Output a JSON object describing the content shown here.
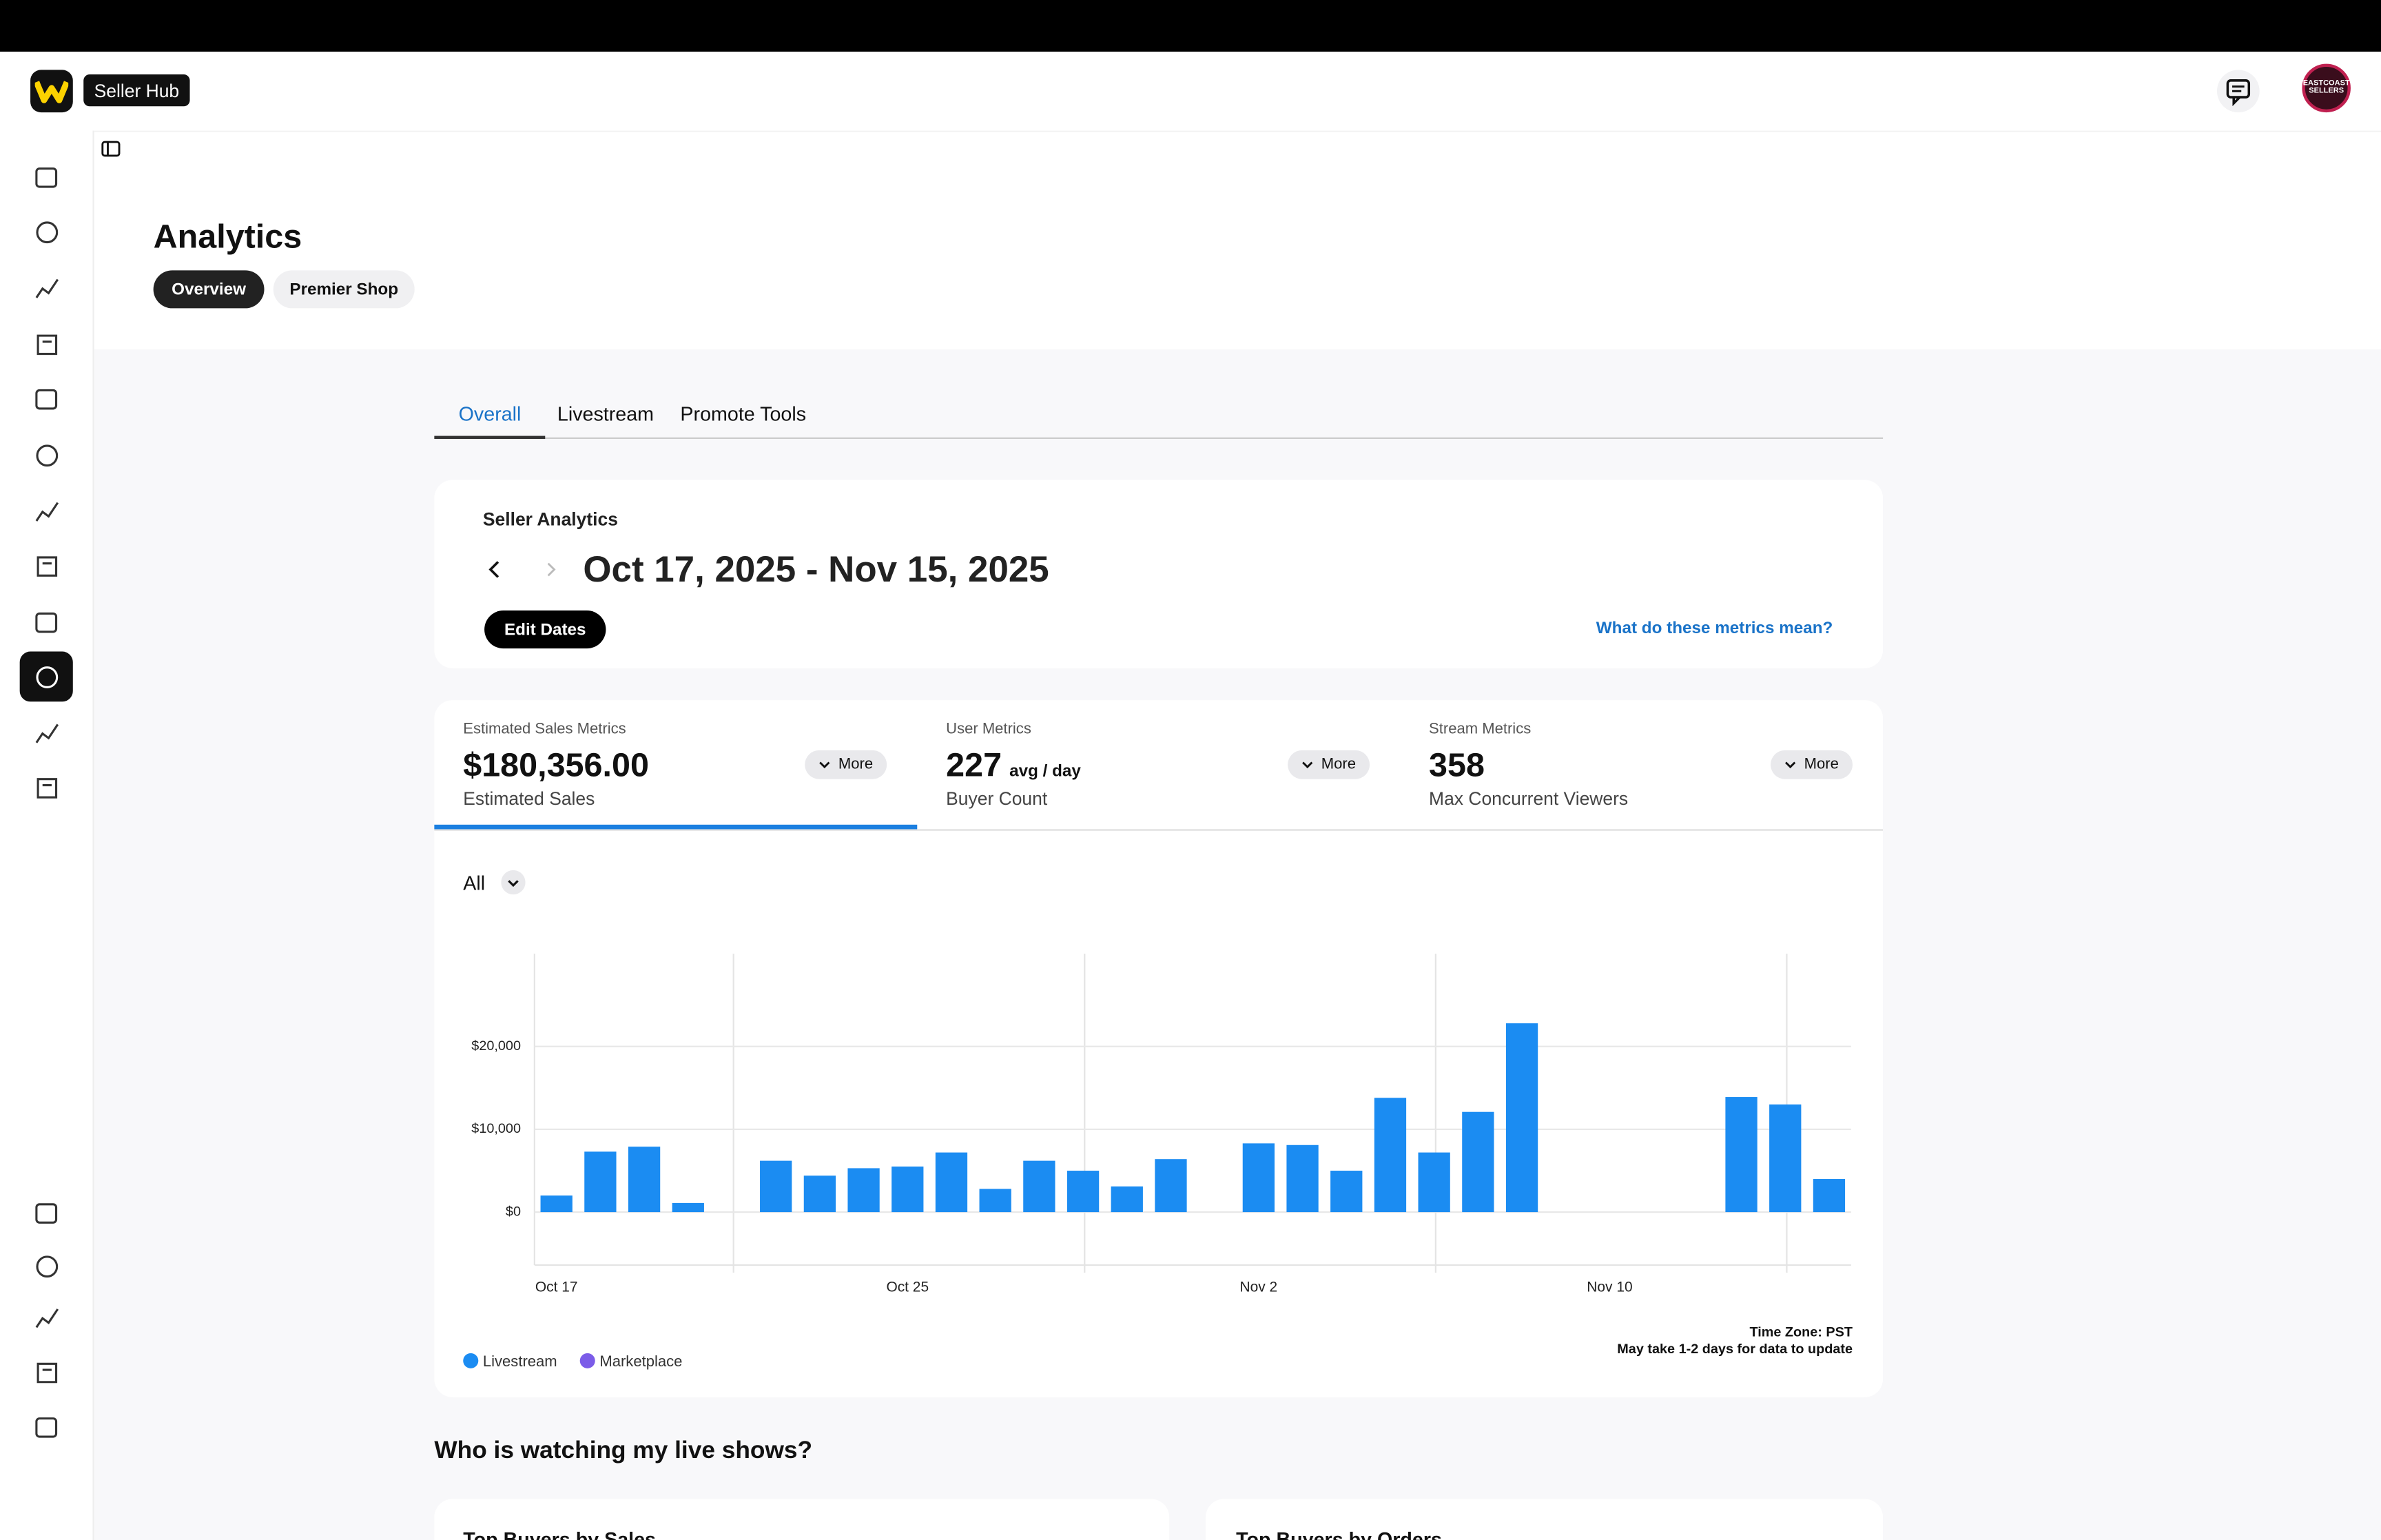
{
  "header": {
    "brand": "Seller Hub",
    "avatar": "EASTCOAST SELLERS"
  },
  "page": {
    "title": "Analytics",
    "pills": [
      "Overview",
      "Premier Shop"
    ]
  },
  "tabs": [
    "Overall",
    "Livestream",
    "Promote Tools"
  ],
  "range_card": {
    "label": "Seller Analytics",
    "dates": "Oct 17, 2025 - Nov 15, 2025",
    "button": "Edit Dates",
    "link": "What do these metrics mean?"
  },
  "metrics": [
    {
      "label": "Estimated Sales Metrics",
      "value": "$180,356.00",
      "unit": "",
      "caption": "Estimated Sales",
      "button": "More"
    },
    {
      "label": "User Metrics",
      "value": "227",
      "unit": "avg / day",
      "caption": "Buyer Count",
      "button": "More"
    },
    {
      "label": "Stream Metrics",
      "value": "358",
      "unit": "",
      "caption": "Max Concurrent Viewers",
      "button": "More"
    }
  ],
  "filter": "All",
  "notes": [
    "Time Zone: PST",
    "May take 1-2 days for data to update"
  ],
  "chart_data": {
    "type": "bar",
    "categories": [
      "Oct 17",
      null,
      null,
      null,
      null,
      null,
      null,
      null,
      "Oct 25",
      null,
      null,
      null,
      null,
      null,
      null,
      null,
      "Nov 2",
      null,
      null,
      null,
      null,
      null,
      null,
      null,
      "Nov 10",
      null,
      null,
      null,
      null,
      null
    ],
    "series": [
      {
        "name": "Livestream",
        "color": "#1b8cf2",
        "values": [
          2000,
          7300,
          7900,
          1100,
          0,
          6200,
          4400,
          5300,
          5500,
          7200,
          2800,
          6200,
          5000,
          3100,
          6400,
          0,
          8300,
          8100,
          5000,
          13800,
          7200,
          12100,
          22800,
          0,
          0,
          0,
          0,
          13900,
          13000,
          4000
        ]
      },
      {
        "name": "Marketplace",
        "color": "#7b5ce8",
        "values": [
          0,
          0,
          0,
          0,
          0,
          0,
          0,
          0,
          0,
          0,
          0,
          0,
          0,
          0,
          0,
          0,
          0,
          0,
          0,
          0,
          0,
          0,
          0,
          0,
          0,
          0,
          0,
          0,
          0,
          0
        ]
      }
    ],
    "ylim": [
      -6400,
      31200
    ],
    "yticks": [
      {
        "value": 0,
        "label": "$0"
      },
      {
        "value": 10000,
        "label": "$10,000"
      },
      {
        "value": 20000,
        "label": "$20,000"
      }
    ],
    "grid": true,
    "stacked": true,
    "legend": "bottom-left"
  },
  "section": {
    "title": "Who is watching my live shows?",
    "cards": [
      "Top Buyers by Sales",
      "Top Buyers by Orders"
    ]
  }
}
